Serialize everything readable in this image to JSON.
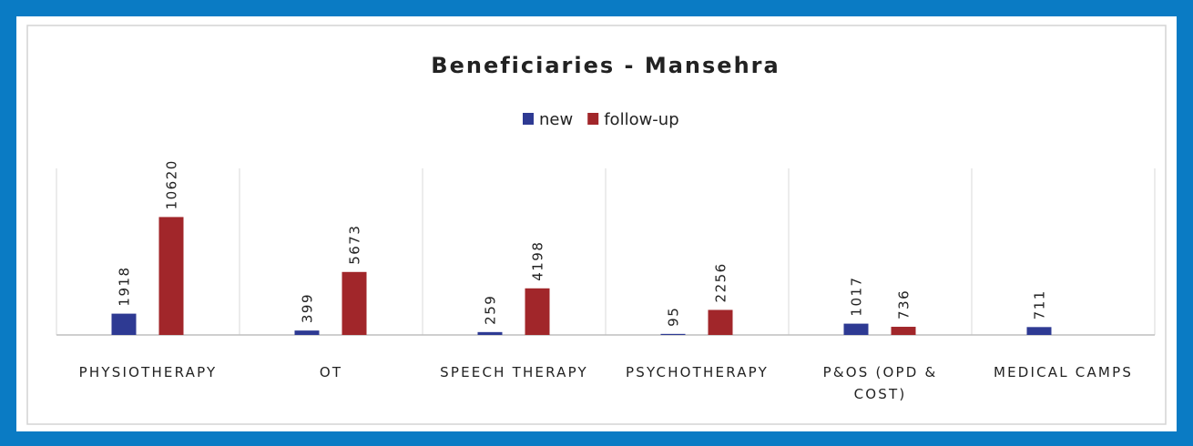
{
  "chart_data": {
    "type": "bar",
    "title": "Beneficiaries - Mansehra",
    "categories": [
      "PHYSIOTHERAPY",
      "OT",
      "SPEECH THERAPY",
      "PSYCHOTHERAPY",
      "P&OS (OPD & COST)",
      "MEDICAL CAMPS"
    ],
    "series": [
      {
        "name": "new",
        "color": "#2e3a93",
        "values": [
          1918,
          399,
          259,
          95,
          1017,
          711
        ]
      },
      {
        "name": "follow-up",
        "color": "#a1262a",
        "values": [
          10620,
          5673,
          4198,
          2256,
          736,
          null
        ]
      }
    ],
    "ylim": [
      0,
      15000
    ],
    "legend": "top"
  }
}
